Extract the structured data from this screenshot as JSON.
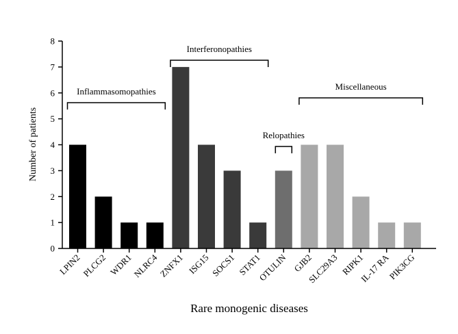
{
  "chart_data": {
    "type": "bar",
    "title": "",
    "xlabel": "Rare monogenic diseases",
    "ylabel": "Number of patients",
    "ylim": [
      0,
      8
    ],
    "yticks": [
      0,
      1,
      2,
      3,
      4,
      5,
      6,
      7,
      8
    ],
    "grid": false,
    "categories": [
      "LPIN2",
      "PLCG2",
      "WDR1",
      "NLRC4",
      "ZNFX1",
      "ISG15",
      "SOCS1",
      "STAT1",
      "OTULIN",
      "GJB2",
      "SLC29A3",
      "RIPK1",
      "IL-17 RA",
      "PIK3CG"
    ],
    "values": [
      4,
      2,
      1,
      1,
      7,
      4,
      3,
      1,
      3,
      4,
      4,
      2,
      1,
      1
    ],
    "groups": [
      {
        "name": "Inflammasomopathies",
        "color": "#000000",
        "members": [
          "LPIN2",
          "PLCG2",
          "WDR1",
          "NLRC4"
        ]
      },
      {
        "name": "Interferonopathies",
        "color": "#3a3a3a",
        "members": [
          "ZNFX1",
          "ISG15",
          "SOCS1",
          "STAT1"
        ]
      },
      {
        "name": "Relopathies",
        "color": "#6e6e6e",
        "members": [
          "OTULIN"
        ]
      },
      {
        "name": "Miscellaneous",
        "color": "#a8a8a8",
        "members": [
          "GJB2",
          "SLC29A3",
          "RIPK1",
          "IL-17 RA",
          "PIK3CG"
        ]
      }
    ]
  }
}
